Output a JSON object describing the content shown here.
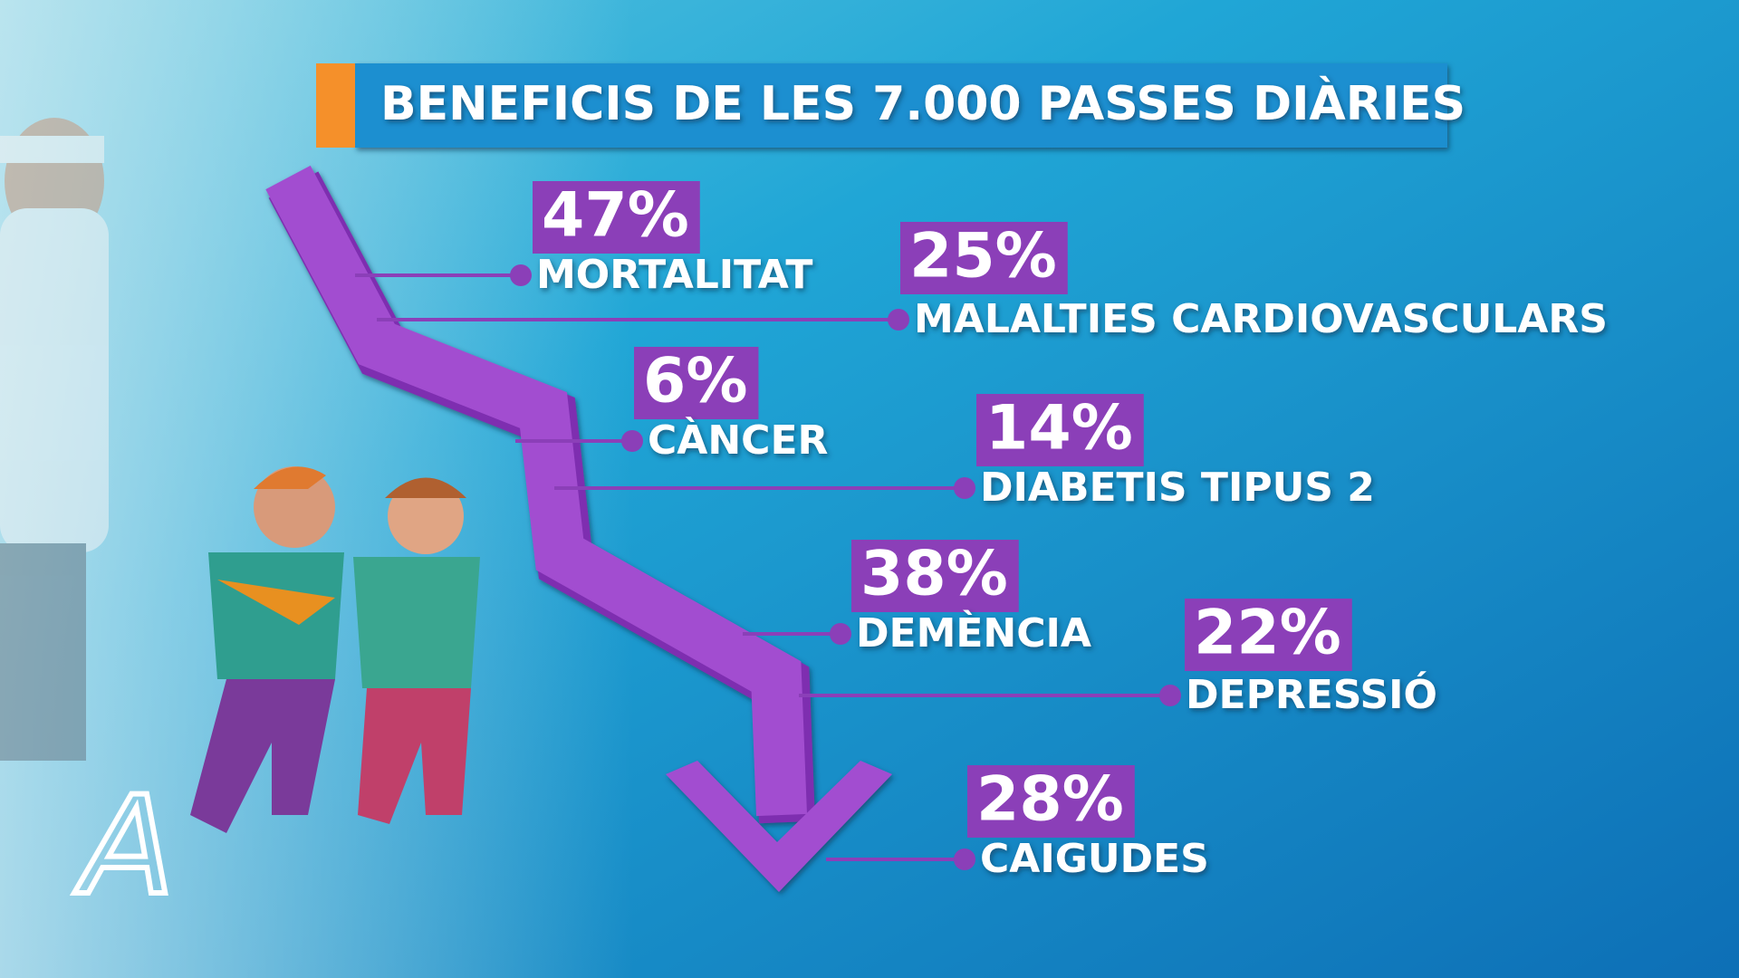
{
  "title": "BENEFICIS DE LES 7.000 PASSES DIÀRIES",
  "logo": "A",
  "items": [
    {
      "percent": "47%",
      "label": "MORTALITAT"
    },
    {
      "percent": "25%",
      "label": "MALALTIES CARDIOVASCULARS"
    },
    {
      "percent": "6%",
      "label": "CÀNCER"
    },
    {
      "percent": "14%",
      "label": "DIABETIS TIPUS 2"
    },
    {
      "percent": "38%",
      "label": "DEMÈNCIA"
    },
    {
      "percent": "22%",
      "label": "DEPRESSIÓ"
    },
    {
      "percent": "28%",
      "label": "CAIGUDES"
    }
  ]
}
